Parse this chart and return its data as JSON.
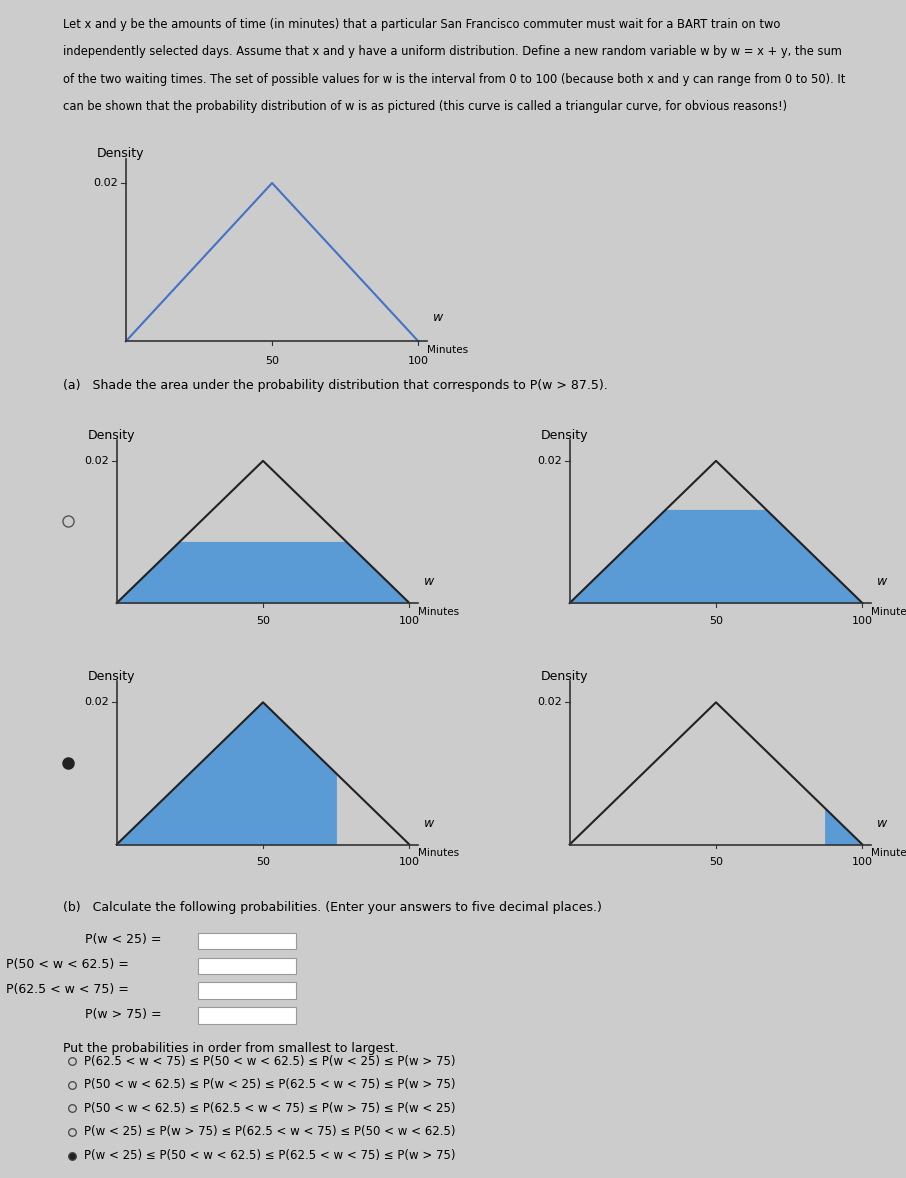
{
  "bg_color": "#cccccc",
  "triangle_outline_color_main": "#4472c4",
  "triangle_black_color": "#222222",
  "shade_color": "#5b9bd5",
  "intro_text_lines": [
    "Let x and y be the amounts of time (in minutes) that a particular San Francisco commuter must wait for a BART train on two",
    "independently selected days. Assume that x and y have a uniform distribution. Define a new random variable w by w = x + y, the sum",
    "of the two waiting times. The set of possible values for w is the interval from 0 to 100 (because both x and y can range from 0 to 50). It",
    "can be shown that the probability distribution of w is as pictured (this curve is called a triangular curve, for obvious reasons!)"
  ],
  "part_a_label": "(a)   Shade the area under the probability distribution that corresponds to P(w > 87.5).",
  "part_b_label": "(b)   Calculate the following probabilities. (Enter your answers to five decimal places.)",
  "prob_labels": [
    "P(w < 25) =",
    "P(50 < w < 62.5) =",
    "P(62.5 < w < 75) =",
    "P(w > 75) ="
  ],
  "ordering_options": [
    "P(62.5 < w < 75) ≤ P(50 < w < 62.5) ≤ P(w < 25) ≤ P(w > 75)",
    "P(50 < w < 62.5) ≤ P(w < 25) ≤ P(62.5 < w < 75) ≤ P(w > 75)",
    "P(50 < w < 62.5) ≤ P(62.5 < w < 75) ≤ P(w > 75) ≤ P(w < 25)",
    "P(w < 25) ≤ P(w > 75) ≤ P(62.5 < w < 75) ≤ P(50 < w < 62.5)",
    "P(w < 25) ≤ P(50 < w < 62.5) ≤ P(62.5 < w < 75) ≤ P(w > 75)"
  ],
  "subplot_shading": [
    {
      "type": "band",
      "shade_level": 0.0085
    },
    {
      "type": "band",
      "shade_level": 0.013
    },
    {
      "type": "full",
      "shade_from": 0,
      "shade_to": 75
    },
    {
      "type": "full",
      "shade_from": 87.5,
      "shade_to": 100
    }
  ],
  "radio_filled": [
    false,
    false,
    true,
    false
  ],
  "no_radio": [
    false,
    false,
    false,
    true
  ]
}
